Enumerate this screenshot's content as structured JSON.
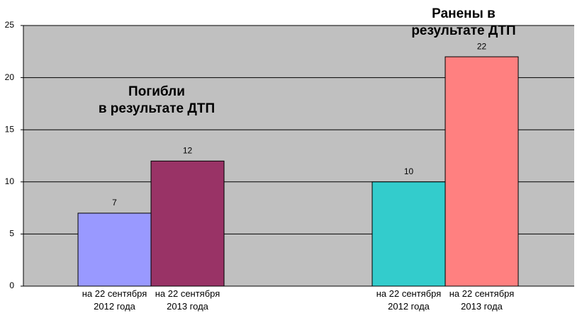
{
  "chart_data": {
    "type": "bar",
    "annotations": [
      "Погибли\nв результате ДТП",
      "Ранены в результате ДТП"
    ],
    "categories": [
      "на 22 сентября\n2012 года",
      "на 22 сентября\n2013 года",
      "на 22 сентября\n2012 года",
      "на 22 сентября\n2013 года"
    ],
    "values": [
      7,
      12,
      10,
      22
    ],
    "colors": [
      "#9999ff",
      "#993366",
      "#33cccc",
      "#ff8080"
    ],
    "ylim": [
      0,
      25
    ],
    "yticks": [
      0,
      5,
      10,
      15,
      20,
      25
    ],
    "grid": true
  }
}
